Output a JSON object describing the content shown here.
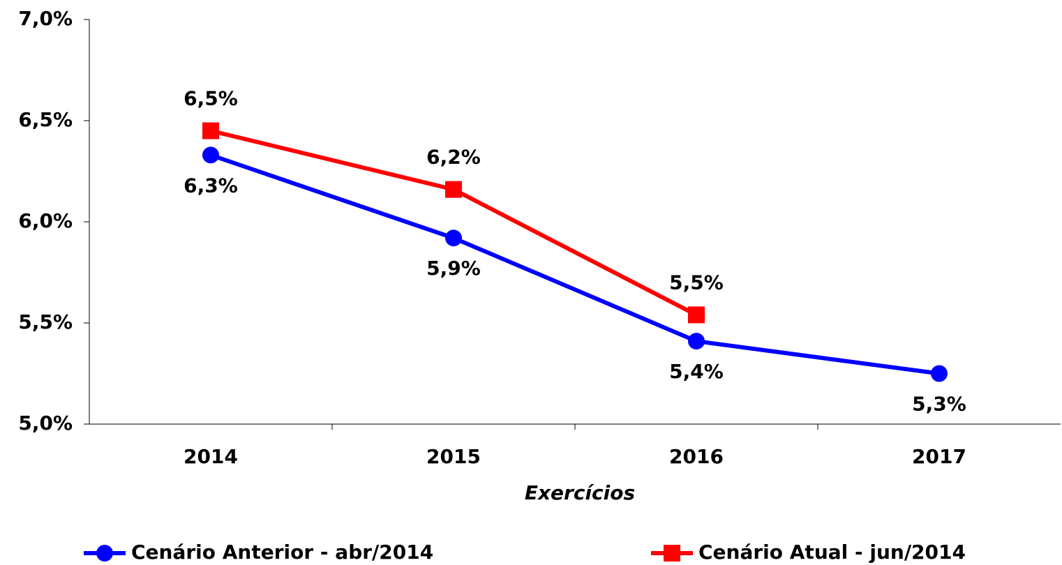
{
  "chart_data": {
    "type": "line",
    "x_label": "Exercícios",
    "categories": [
      "2014",
      "2015",
      "2016",
      "2017"
    ],
    "series": [
      {
        "name": "Cenário Anterior - abr/2014",
        "color": "#0000ff",
        "marker": "circle",
        "values": [
          6.33,
          5.92,
          5.41,
          5.25
        ],
        "value_labels": [
          "6,3%",
          "5,9%",
          "5,4%",
          "5,3%"
        ]
      },
      {
        "name": "Cenário Atual - jun/2014",
        "color": "#ff0000",
        "marker": "square",
        "values": [
          6.45,
          6.16,
          5.54,
          null
        ],
        "value_labels": [
          "6,5%",
          "6,2%",
          "5,5%",
          null
        ]
      }
    ],
    "ylim": [
      5.0,
      7.0
    ],
    "yticks": [
      {
        "value": 5.0,
        "label": "5,0%"
      },
      {
        "value": 5.5,
        "label": "5,5%"
      },
      {
        "value": 6.0,
        "label": "6,0%"
      },
      {
        "value": 6.5,
        "label": "6,5%"
      },
      {
        "value": 7.0,
        "label": "7,0%"
      }
    ],
    "grid": false,
    "legend": "bottom"
  }
}
